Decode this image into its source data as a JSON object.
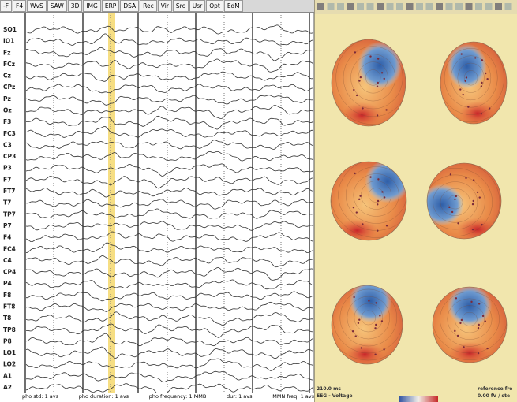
{
  "toolbar": {
    "tabs": [
      "-F",
      "F4",
      "WvS",
      "SAW",
      "3D",
      "IMG",
      "ERP",
      "DSA",
      "Rec",
      "Vir",
      "Src",
      "Usr",
      "Opt",
      "EdM"
    ]
  },
  "channels": [
    "SO1",
    "IO1",
    "Fz",
    "FCz",
    "Cz",
    "CPz",
    "Pz",
    "Oz",
    "F3",
    "FC3",
    "C3",
    "CP3",
    "P3",
    "F7",
    "FT7",
    "T7",
    "TP7",
    "P7",
    "F4",
    "FC4",
    "C4",
    "CP4",
    "P4",
    "F8",
    "FT8",
    "T8",
    "TP8",
    "P8",
    "LO1",
    "LO2",
    "A1",
    "A2"
  ],
  "footer": {
    "conditions": [
      "pho std: 1 avs",
      "pho duration: 1 avs",
      "pho frequency: 1 MMB",
      "dur: 1 avs",
      "MMN freq: 1 avs"
    ]
  },
  "map": {
    "time": "210.0 ms",
    "measure": "EEG - Voltage",
    "reference": "reference fre",
    "scale": "0.00 fV / ste"
  }
}
